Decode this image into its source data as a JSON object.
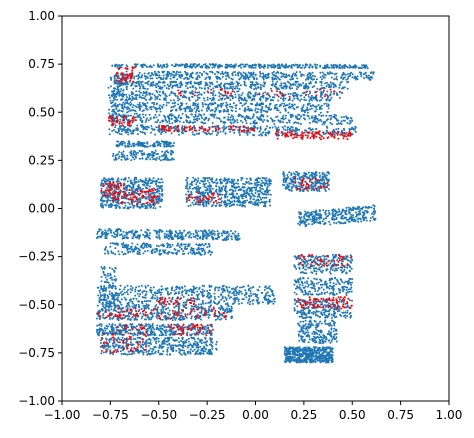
{
  "chart_data": {
    "type": "scatter",
    "title": "",
    "xlabel": "",
    "ylabel": "",
    "xlim": [
      -1.0,
      1.0
    ],
    "ylim": [
      -1.0,
      1.0
    ],
    "grid": false,
    "legend": "none",
    "x_ticks": [
      -1.0,
      -0.75,
      -0.5,
      -0.25,
      0.0,
      0.25,
      0.5,
      0.75,
      1.0
    ],
    "y_ticks": [
      -1.0,
      -0.75,
      -0.5,
      -0.25,
      0.0,
      0.25,
      0.5,
      0.75,
      1.0
    ],
    "x_tick_labels": [
      "−1.00",
      "−0.75",
      "−0.50",
      "−0.25",
      "0.00",
      "0.25",
      "0.50",
      "0.75",
      "1.00"
    ],
    "y_tick_labels": [
      "−1.00",
      "−0.75",
      "−0.50",
      "−0.25",
      "0.00",
      "0.25",
      "0.50",
      "0.75",
      "1.00"
    ],
    "series": [
      {
        "color": "#1f77b4",
        "marker_radius": 1.0,
        "clusters": [
          {
            "kind": "band",
            "x": [
              -0.74,
              0.58
            ],
            "y": [
              0.73,
              0.75
            ],
            "slope": -0.02,
            "n": 380
          },
          {
            "kind": "band",
            "x": [
              -0.72,
              0.62
            ],
            "y": [
              0.67,
              0.71
            ],
            "slope": -0.02,
            "n": 420
          },
          {
            "kind": "band",
            "x": [
              -0.72,
              0.48
            ],
            "y": [
              0.62,
              0.66
            ],
            "slope": -0.01,
            "n": 380
          },
          {
            "kind": "band",
            "x": [
              -0.74,
              0.45
            ],
            "y": [
              0.56,
              0.61
            ],
            "slope": -0.02,
            "n": 380
          },
          {
            "kind": "band",
            "x": [
              -0.74,
              0.38
            ],
            "y": [
              0.5,
              0.55
            ],
            "slope": -0.03,
            "n": 360
          },
          {
            "kind": "band",
            "x": [
              -0.76,
              0.5
            ],
            "y": [
              0.44,
              0.49
            ],
            "slope": -0.04,
            "n": 380
          },
          {
            "kind": "band",
            "x": [
              -0.76,
              0.52
            ],
            "y": [
              0.38,
              0.43
            ],
            "slope": -0.05,
            "n": 400
          },
          {
            "kind": "band",
            "x": [
              -0.72,
              -0.42
            ],
            "y": [
              0.32,
              0.35
            ],
            "slope": 0.0,
            "n": 120
          },
          {
            "kind": "band",
            "x": [
              -0.74,
              -0.42
            ],
            "y": [
              0.25,
              0.3
            ],
            "slope": 0.0,
            "n": 130
          },
          {
            "kind": "band",
            "x": [
              -0.8,
              -0.48
            ],
            "y": [
              0.0,
              0.16
            ],
            "slope": 0.0,
            "n": 520
          },
          {
            "kind": "band",
            "x": [
              -0.36,
              0.08
            ],
            "y": [
              0.01,
              0.16
            ],
            "slope": 0.0,
            "n": 560
          },
          {
            "kind": "band",
            "x": [
              0.14,
              0.38
            ],
            "y": [
              0.09,
              0.19
            ],
            "slope": 0.0,
            "n": 260
          },
          {
            "kind": "band",
            "x": [
              0.22,
              0.62
            ],
            "y": [
              -0.08,
              0.0
            ],
            "slope": 0.18,
            "n": 300
          },
          {
            "kind": "band",
            "x": [
              -0.82,
              -0.08
            ],
            "y": [
              -0.16,
              -0.11
            ],
            "slope": -0.06,
            "n": 330
          },
          {
            "kind": "band",
            "x": [
              -0.78,
              -0.22
            ],
            "y": [
              -0.24,
              -0.18
            ],
            "slope": -0.02,
            "n": 240
          },
          {
            "kind": "band",
            "x": [
              -0.82,
              0.1
            ],
            "y": [
              -0.5,
              -0.4
            ],
            "slope": 0.0,
            "n": 500
          },
          {
            "kind": "band",
            "x": [
              -0.82,
              -0.12
            ],
            "y": [
              -0.58,
              -0.5
            ],
            "slope": 0.0,
            "n": 420
          },
          {
            "kind": "band",
            "x": [
              -0.82,
              -0.22
            ],
            "y": [
              -0.66,
              -0.6
            ],
            "slope": 0.0,
            "n": 380
          },
          {
            "kind": "band",
            "x": [
              -0.8,
              -0.2
            ],
            "y": [
              -0.76,
              -0.67
            ],
            "slope": 0.0,
            "n": 420
          },
          {
            "kind": "band",
            "x": [
              0.2,
              0.5
            ],
            "y": [
              -0.34,
              -0.24
            ],
            "slope": 0.0,
            "n": 220
          },
          {
            "kind": "band",
            "x": [
              0.2,
              0.5
            ],
            "y": [
              -0.45,
              -0.36
            ],
            "slope": 0.0,
            "n": 180
          },
          {
            "kind": "band",
            "x": [
              0.2,
              0.5
            ],
            "y": [
              -0.57,
              -0.47
            ],
            "slope": 0.0,
            "n": 220
          },
          {
            "kind": "band",
            "x": [
              0.22,
              0.42
            ],
            "y": [
              -0.7,
              -0.58
            ],
            "slope": 0.0,
            "n": 180
          },
          {
            "kind": "band",
            "x": [
              0.15,
              0.4
            ],
            "y": [
              -0.8,
              -0.72
            ],
            "slope": 0.0,
            "n": 500
          },
          {
            "kind": "band",
            "x": [
              -0.8,
              -0.72
            ],
            "y": [
              -0.5,
              -0.3
            ],
            "slope": 0.0,
            "n": 80
          },
          {
            "kind": "band",
            "x": [
              -0.76,
              -0.66
            ],
            "y": [
              0.45,
              0.7
            ],
            "slope": 0.0,
            "n": 140
          }
        ]
      },
      {
        "color": "#ff0000",
        "marker_radius": 1.0,
        "clusters": [
          {
            "kind": "band",
            "x": [
              -0.72,
              -0.62
            ],
            "y": [
              0.65,
              0.74
            ],
            "slope": 0.0,
            "n": 40
          },
          {
            "kind": "band",
            "x": [
              -0.76,
              -0.62
            ],
            "y": [
              0.43,
              0.48
            ],
            "slope": 0.0,
            "n": 40
          },
          {
            "kind": "band",
            "x": [
              -0.5,
              0.0
            ],
            "y": [
              0.4,
              0.43
            ],
            "slope": -0.02,
            "n": 70
          },
          {
            "kind": "band",
            "x": [
              0.1,
              0.5
            ],
            "y": [
              0.36,
              0.4
            ],
            "slope": -0.02,
            "n": 90
          },
          {
            "kind": "band",
            "x": [
              -0.4,
              0.45
            ],
            "y": [
              0.58,
              0.62
            ],
            "slope": 0.0,
            "n": 40
          },
          {
            "kind": "band",
            "x": [
              -0.8,
              -0.68
            ],
            "y": [
              0.06,
              0.14
            ],
            "slope": 0.0,
            "n": 40
          },
          {
            "kind": "band",
            "x": [
              -0.74,
              -0.5
            ],
            "y": [
              0.02,
              0.1
            ],
            "slope": 0.0,
            "n": 70
          },
          {
            "kind": "band",
            "x": [
              -0.35,
              -0.18
            ],
            "y": [
              0.03,
              0.08
            ],
            "slope": 0.0,
            "n": 30
          },
          {
            "kind": "band",
            "x": [
              0.2,
              0.38
            ],
            "y": [
              0.1,
              0.16
            ],
            "slope": 0.0,
            "n": 30
          },
          {
            "kind": "band",
            "x": [
              -0.82,
              -0.12
            ],
            "y": [
              -0.57,
              -0.52
            ],
            "slope": 0.0,
            "n": 80
          },
          {
            "kind": "band",
            "x": [
              -0.5,
              -0.3
            ],
            "y": [
              -0.5,
              -0.46
            ],
            "slope": 0.0,
            "n": 30
          },
          {
            "kind": "band",
            "x": [
              -0.8,
              -0.55
            ],
            "y": [
              -0.75,
              -0.6
            ],
            "slope": 0.0,
            "n": 60
          },
          {
            "kind": "band",
            "x": [
              -0.45,
              -0.22
            ],
            "y": [
              -0.66,
              -0.6
            ],
            "slope": 0.0,
            "n": 45
          },
          {
            "kind": "band",
            "x": [
              0.22,
              0.5
            ],
            "y": [
              -0.3,
              -0.24
            ],
            "slope": 0.0,
            "n": 40
          },
          {
            "kind": "band",
            "x": [
              0.22,
              0.5
            ],
            "y": [
              -0.52,
              -0.46
            ],
            "slope": 0.0,
            "n": 70
          }
        ]
      }
    ]
  }
}
